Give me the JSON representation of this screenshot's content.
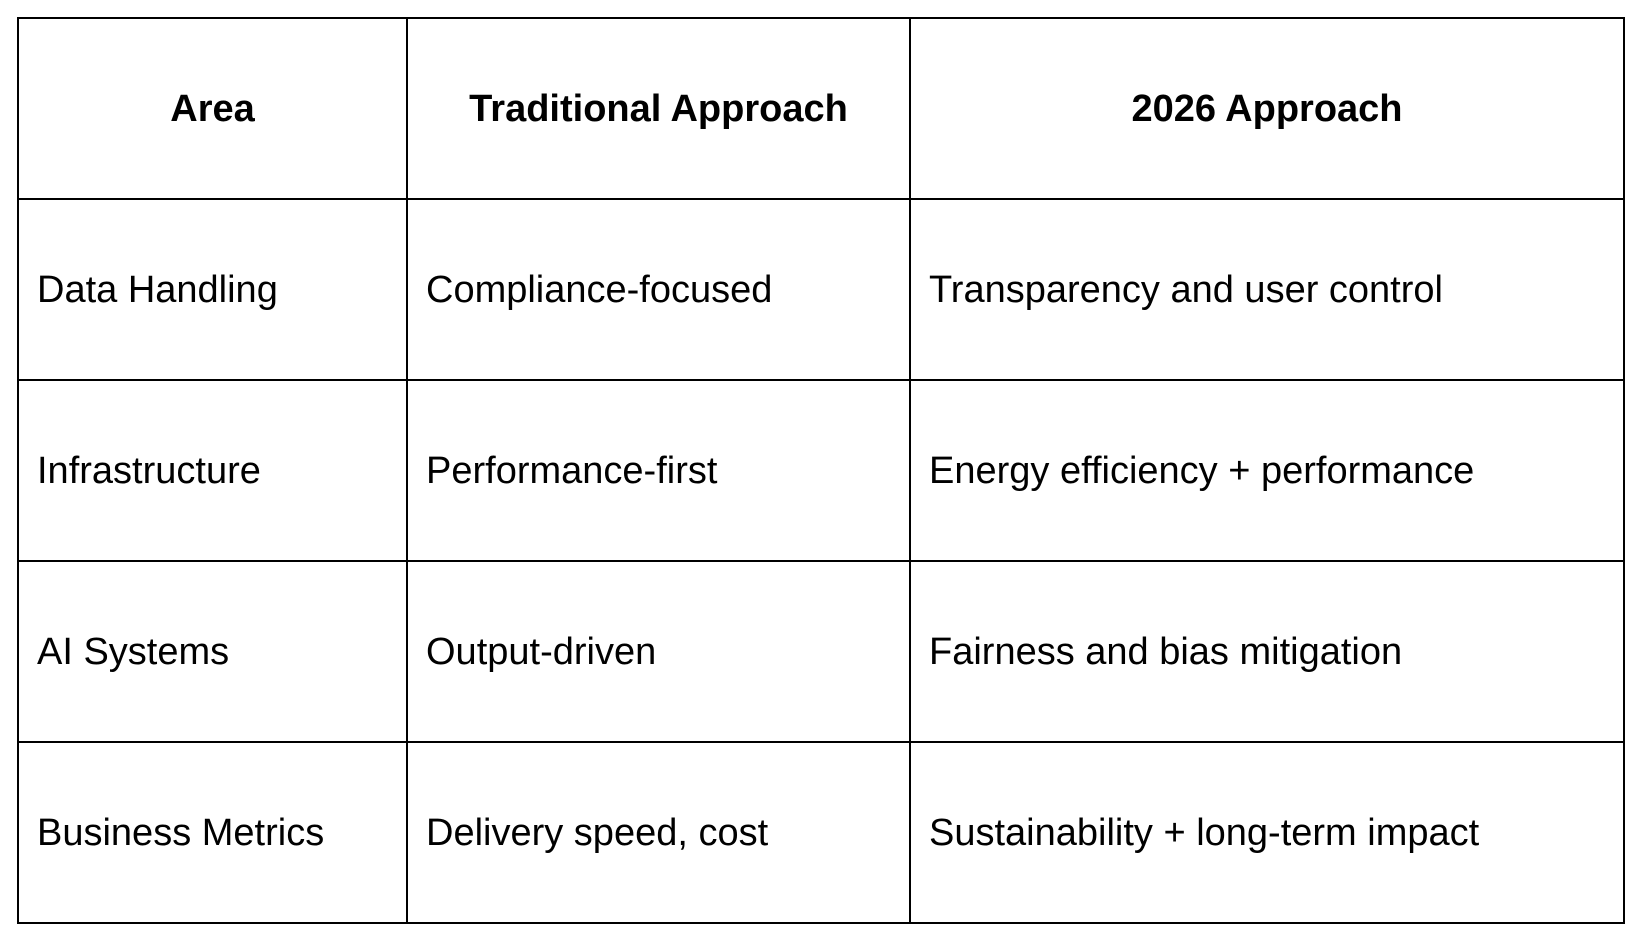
{
  "table": {
    "headers": [
      "Area",
      "Traditional Approach",
      "2026 Approach"
    ],
    "rows": [
      [
        "Data Handling",
        "Compliance-focused",
        "Transparency and user control"
      ],
      [
        "Infrastructure",
        "Performance-first",
        "Energy efficiency + performance"
      ],
      [
        "AI Systems",
        "Output-driven",
        "Fairness and bias mitigation"
      ],
      [
        "Business Metrics",
        "Delivery speed, cost",
        "Sustainability + long-term impact"
      ]
    ]
  },
  "colors": {
    "border": "#000000",
    "text": "#000000",
    "background": "#ffffff"
  }
}
